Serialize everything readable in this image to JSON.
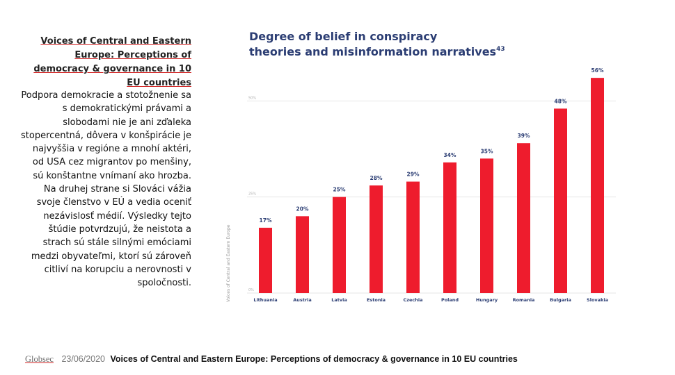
{
  "left_panel": {
    "title": "Voices of Central and Eastern Europe: Perceptions of democracy & governance in 10 EU countries",
    "paragraph1": "Podpora demokracie a stotožnenie sa s demokratickými právami a slobodami nie je ani zďaleka stopercentná, dôvera v konšpirácie je najvyššia v regióne a mnohí aktéri, od USA cez migrantov po menšiny, sú konštantne vnímaní ako hrozba.",
    "paragraph2": "Na druhej strane si Slováci vážia svoje členstvo v EÚ a vedia oceniť nezávislosť médií. Výsledky tejto štúdie potvrdzujú, že neistota a strach sú stále silnými emóciami medzi obyvateľmi, ktorí sú zároveň citliví na korupciu a nerovnosti v spoločnosti."
  },
  "chart_title": {
    "line1": "Degree of belief in conspiracy",
    "line2": "theories and misinformation narratives",
    "footnote": "43"
  },
  "chart_data": {
    "type": "bar",
    "title": "Degree of belief in conspiracy theories and misinformation narratives",
    "categories": [
      "Lithuania",
      "Austria",
      "Latvia",
      "Estonia",
      "Czechia",
      "Poland",
      "Hungary",
      "Romania",
      "Bulgaria",
      "Slovakia"
    ],
    "values": [
      17,
      20,
      25,
      28,
      29,
      34,
      35,
      39,
      48,
      56
    ],
    "value_labels": [
      "17%",
      "20%",
      "25%",
      "28%",
      "29%",
      "34%",
      "35%",
      "39%",
      "48%",
      "56%"
    ],
    "ylabel": "Voices of Central and Eastern Europe",
    "xlabel": "",
    "ylim": [
      0,
      60
    ],
    "yticks": [
      0,
      25,
      50
    ],
    "ytick_labels": [
      "0%",
      "25%",
      "50%"
    ],
    "grid": true,
    "bar_color": "#ee1c2d",
    "label_color": "#2b3d73"
  },
  "footer": {
    "org": "Globsec",
    "date": "23/06/2020",
    "reference": "Voices of Central and Eastern Europe: Perceptions of democracy & governance in 10 EU countries"
  }
}
